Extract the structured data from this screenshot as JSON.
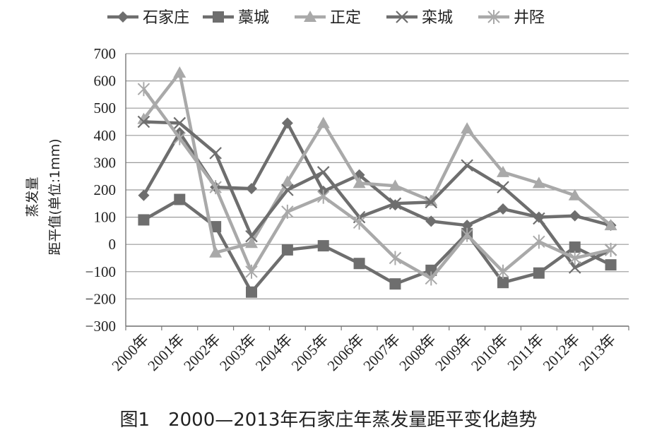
{
  "chart_data": {
    "type": "line",
    "title": "",
    "xlabel": "",
    "ylabel_lines": [
      "蒸发量",
      "距平值(单位:1mm)"
    ],
    "ylim": [
      -300,
      700
    ],
    "yticks": [
      -300,
      -200,
      -100,
      0,
      100,
      200,
      300,
      400,
      500,
      600,
      700
    ],
    "grid": true,
    "legend_position": "top",
    "categories": [
      "2000年",
      "2001年",
      "2002年",
      "2003年",
      "2004年",
      "2005年",
      "2006年",
      "2007年",
      "2008年",
      "2009年",
      "2010年",
      "2011年",
      "2012年",
      "2013年"
    ],
    "series": [
      {
        "name": "石家庄",
        "marker": "diamond",
        "color": "#6e6e6e",
        "values": [
          180,
          410,
          210,
          205,
          445,
          195,
          255,
          145,
          85,
          70,
          130,
          100,
          105,
          70
        ]
      },
      {
        "name": "藁城",
        "marker": "square",
        "color": "#6e6e6e",
        "values": [
          90,
          165,
          65,
          -175,
          -20,
          -5,
          -70,
          -145,
          -95,
          40,
          -140,
          -105,
          -10,
          -75
        ]
      },
      {
        "name": "正定",
        "marker": "triangle",
        "color": "#a9a9a9",
        "values": [
          460,
          630,
          -30,
          5,
          230,
          445,
          225,
          215,
          160,
          425,
          265,
          225,
          180,
          70
        ]
      },
      {
        "name": "栾城",
        "marker": "x",
        "color": "#6e6e6e",
        "values": [
          450,
          445,
          335,
          30,
          200,
          265,
          100,
          150,
          155,
          290,
          210,
          95,
          -85,
          -20
        ]
      },
      {
        "name": "井陉",
        "marker": "star",
        "color": "#a9a9a9",
        "values": [
          570,
          390,
          210,
          -100,
          120,
          175,
          80,
          -50,
          -125,
          35,
          -100,
          10,
          -50,
          -20
        ]
      }
    ]
  },
  "caption": "图1　2000—2013年石家庄年蒸发量距平变化趋势"
}
